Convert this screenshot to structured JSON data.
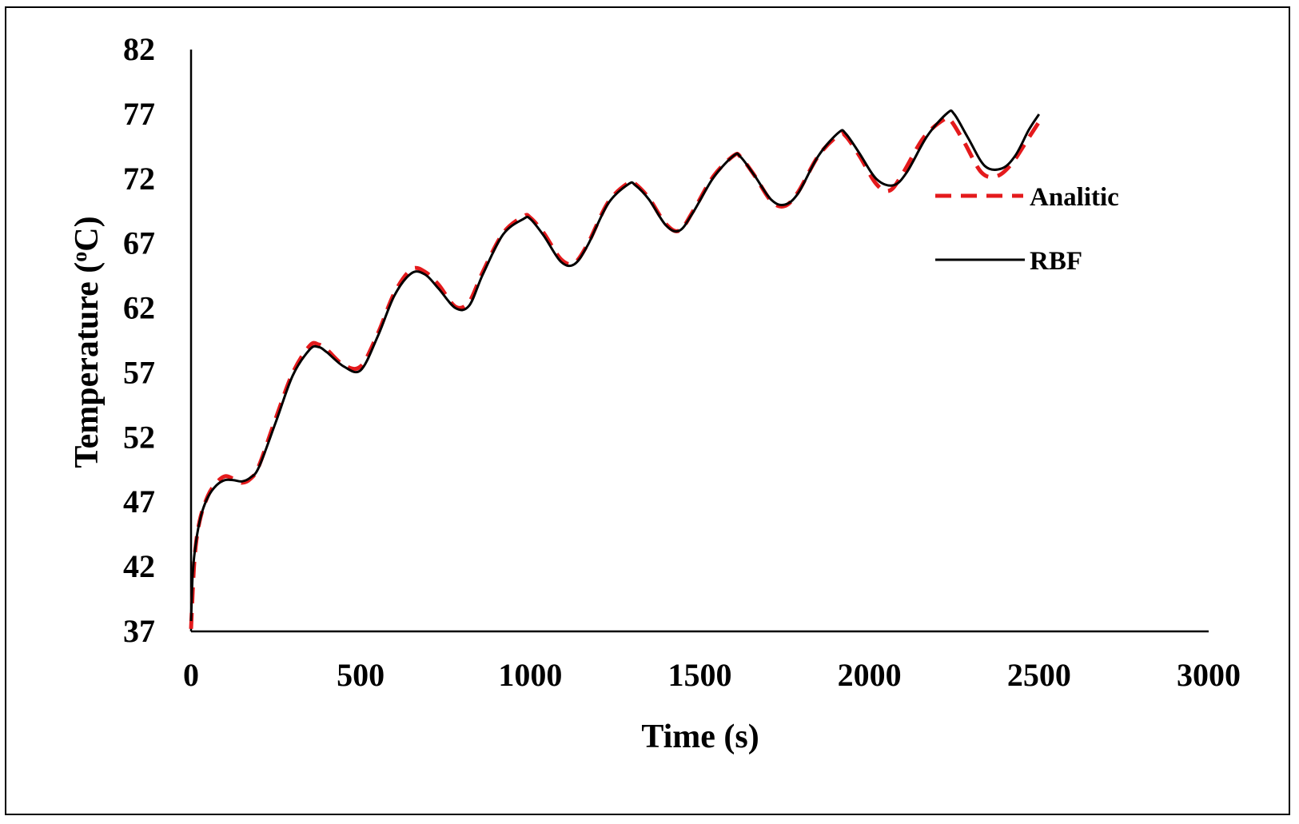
{
  "chart_data": {
    "type": "line",
    "title": "",
    "xlabel": "Time (s)",
    "ylabel_parts": [
      "Temperature (",
      "o",
      "C)"
    ],
    "xlim": [
      0,
      3000
    ],
    "ylim": [
      37,
      82
    ],
    "x_ticks": [
      0,
      500,
      1000,
      1500,
      2000,
      2500,
      3000
    ],
    "y_ticks": [
      37,
      42,
      47,
      52,
      57,
      62,
      67,
      72,
      77,
      82
    ],
    "grid": false,
    "legend_position": "right",
    "colors": {
      "analitic": "#e41a1c",
      "rbf": "#000000",
      "axis": "#000000"
    },
    "series": [
      {
        "name": "Analitic",
        "style": "dashed",
        "x": [
          0,
          10,
          25,
          50,
          75,
          100,
          125,
          150,
          175,
          200,
          250,
          300,
          350,
          375,
          400,
          450,
          500,
          550,
          600,
          650,
          690,
          730,
          780,
          820,
          860,
          920,
          980,
          1000,
          1040,
          1090,
          1130,
          1170,
          1230,
          1290,
          1310,
          1350,
          1400,
          1440,
          1480,
          1540,
          1600,
          1620,
          1660,
          1710,
          1750,
          1790,
          1850,
          1910,
          1930,
          1970,
          2020,
          2060,
          2100,
          2160,
          2220,
          2240,
          2280,
          2330,
          2375,
          2420,
          2470,
          2500
        ],
        "y": [
          37.2,
          42.5,
          45.5,
          47.5,
          48.5,
          49.0,
          48.8,
          48.5,
          48.8,
          49.8,
          53.5,
          57.0,
          59.1,
          59.2,
          58.8,
          57.6,
          57.5,
          60.0,
          63.2,
          65.0,
          64.8,
          63.8,
          62.1,
          62.5,
          64.8,
          67.8,
          69.1,
          69.0,
          67.8,
          65.8,
          65.5,
          67.0,
          70.2,
          71.7,
          71.6,
          70.5,
          68.5,
          68.0,
          69.5,
          72.2,
          73.8,
          73.7,
          72.3,
          70.3,
          69.9,
          71.0,
          73.8,
          75.4,
          75.3,
          73.8,
          71.6,
          71.1,
          72.5,
          75.2,
          76.6,
          76.5,
          74.8,
          72.5,
          72.2,
          73.2,
          75.2,
          76.4
        ]
      },
      {
        "name": "RBF",
        "style": "solid",
        "x": [
          0,
          5,
          15,
          30,
          50,
          75,
          100,
          125,
          150,
          175,
          200,
          250,
          300,
          350,
          375,
          400,
          450,
          500,
          550,
          600,
          650,
          690,
          730,
          780,
          820,
          860,
          920,
          980,
          1000,
          1040,
          1090,
          1130,
          1170,
          1230,
          1290,
          1310,
          1350,
          1400,
          1440,
          1480,
          1540,
          1600,
          1620,
          1660,
          1710,
          1750,
          1790,
          1850,
          1910,
          1930,
          1970,
          2020,
          2070,
          2110,
          2170,
          2230,
          2250,
          2290,
          2340,
          2390,
          2430,
          2470,
          2500
        ],
        "y": [
          37.8,
          41.5,
          44.0,
          46.0,
          47.4,
          48.3,
          48.7,
          48.7,
          48.6,
          48.9,
          49.7,
          53.2,
          56.8,
          58.8,
          59.0,
          58.6,
          57.5,
          57.2,
          59.8,
          63.0,
          64.7,
          64.6,
          63.5,
          62.0,
          62.2,
          64.6,
          67.7,
          68.9,
          68.9,
          67.6,
          65.6,
          65.4,
          66.9,
          70.1,
          71.6,
          71.5,
          70.4,
          68.4,
          68.0,
          69.4,
          72.1,
          73.8,
          73.7,
          72.3,
          70.4,
          70.0,
          70.9,
          73.8,
          75.6,
          75.5,
          74.0,
          72.0,
          71.5,
          72.5,
          75.3,
          77.1,
          77.0,
          75.2,
          73.0,
          72.8,
          73.8,
          75.8,
          77.0
        ]
      }
    ]
  }
}
